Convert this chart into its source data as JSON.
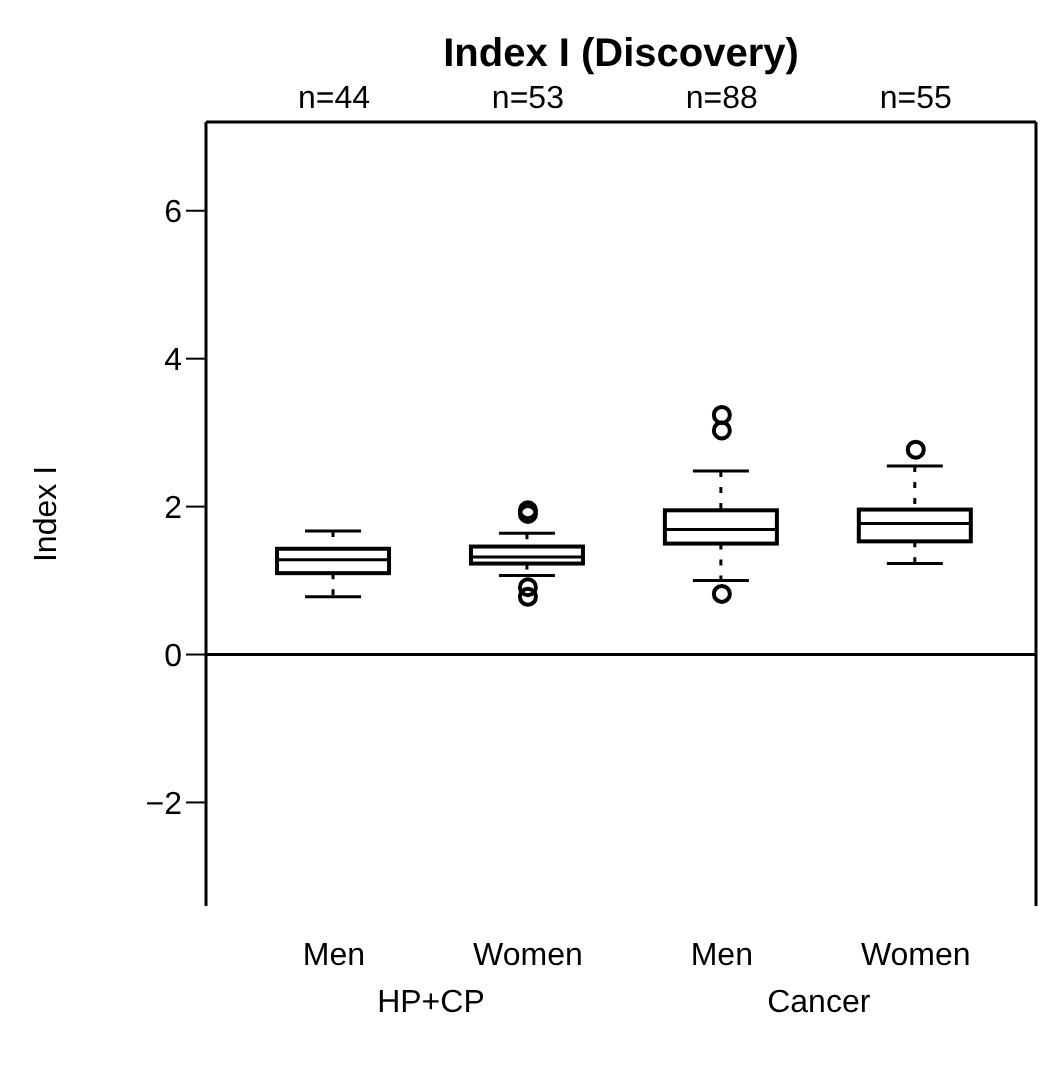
{
  "chart_data": {
    "type": "box",
    "title": "Index I (Discovery)",
    "ylabel": "Index I",
    "categories": [
      "Men",
      "Women",
      "Men",
      "Women"
    ],
    "boxes": [
      {
        "low": 0.78,
        "q1": 1.1,
        "median": 1.28,
        "q3": 1.43,
        "high": 1.67
      },
      {
        "low": 1.07,
        "q1": 1.23,
        "median": 1.32,
        "q3": 1.46,
        "high": 1.64,
        "outliers": [
          1.9,
          1.95,
          0.91,
          0.78
        ]
      },
      {
        "low": 1.0,
        "q1": 1.5,
        "median": 1.69,
        "q3": 1.95,
        "high": 2.48,
        "outliers": [
          3.24,
          3.03,
          0.82
        ]
      },
      {
        "low": 1.23,
        "q1": 1.53,
        "median": 1.77,
        "q3": 1.96,
        "high": 2.55,
        "outliers": [
          2.77
        ]
      }
    ],
    "color": "#000000",
    "ylim": [
      -3.4,
      7.2
    ],
    "yticks": [
      -2,
      0,
      2,
      4,
      6
    ],
    "ref_lines": [
      {
        "axis": "y",
        "value": 0
      }
    ],
    "annotations": [
      "n=44",
      "n=53",
      "n=88",
      "n=55",
      "HP+CP",
      "Cancer"
    ]
  }
}
